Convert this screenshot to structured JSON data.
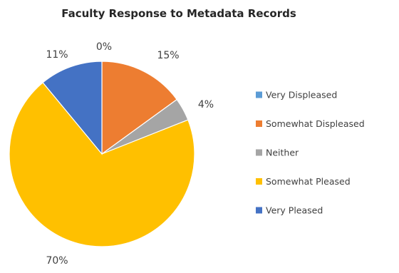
{
  "chart_data": {
    "type": "pie",
    "title": "Faculty Response to Metadata Records",
    "legend_position": "right",
    "categories": [
      "Very Displeased",
      "Somewhat Displeased",
      "Neither",
      "Somewhat Pleased",
      "Very Pleased"
    ],
    "values": [
      0,
      15,
      4,
      70,
      11
    ],
    "labels": [
      "0%",
      "15%",
      "4%",
      "70%",
      "11%"
    ],
    "colors": [
      "#5B9BD5",
      "#ED7D31",
      "#A5A5A5",
      "#FFC000",
      "#4472C4"
    ]
  }
}
